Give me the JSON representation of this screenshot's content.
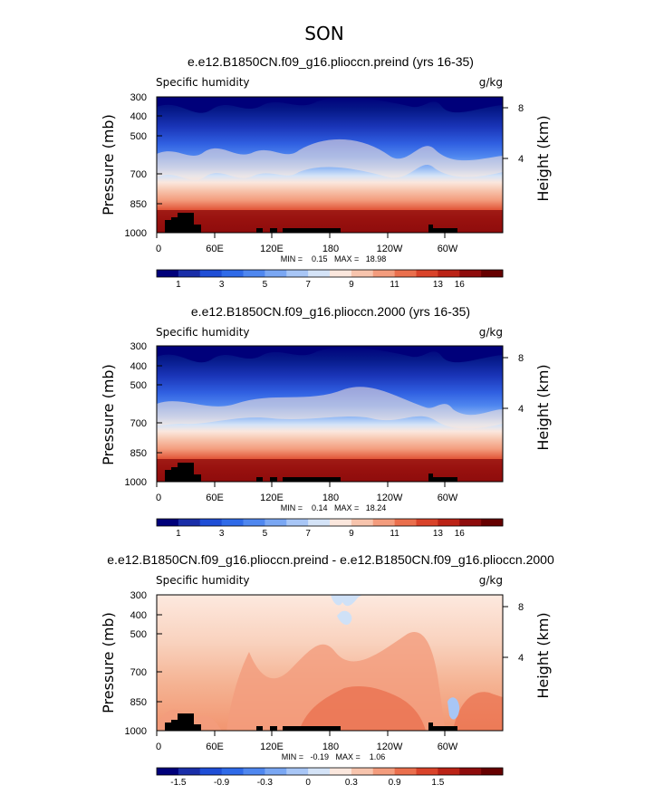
{
  "page_title": "SON",
  "chart_data": [
    {
      "type": "contour",
      "title": "e.e12.B1850CN.f09_g16.plioccn.preind (yrs 16-35)",
      "left_label": "Specific humidity",
      "units": "g/kg",
      "ylabel": "Pressure (mb)",
      "ylabel_right": "Height (km)",
      "yticks": [
        "300",
        "400",
        "500",
        "700",
        "850",
        "1000"
      ],
      "yticks_right": [
        "8",
        "4"
      ],
      "xticks": [
        "0",
        "60E",
        "120E",
        "180",
        "120W",
        "60W"
      ],
      "stats": "MIN =    0.15   MAX =   18.98",
      "colorbar_labels": [
        "1",
        "3",
        "5",
        "7",
        "9",
        "11",
        "13",
        "16"
      ],
      "colorbar_colors": [
        "#00007a",
        "#1a2ea8",
        "#1f4ed6",
        "#2f6ae8",
        "#4f87ef",
        "#7aa7f3",
        "#a8c6f6",
        "#d4e3f7",
        "#fbe7dd",
        "#f7c4ad",
        "#f39c7d",
        "#ea6f4d",
        "#d9432a",
        "#bb2316",
        "#8e0c0c",
        "#660000"
      ],
      "value_range": [
        0.15,
        18.98
      ]
    },
    {
      "type": "contour",
      "title": "e.e12.B1850CN.f09_g16.plioccn.2000 (yrs 16-35)",
      "left_label": "Specific humidity",
      "units": "g/kg",
      "ylabel": "Pressure (mb)",
      "ylabel_right": "Height (km)",
      "yticks": [
        "300",
        "400",
        "500",
        "700",
        "850",
        "1000"
      ],
      "yticks_right": [
        "8",
        "4"
      ],
      "xticks": [
        "0",
        "60E",
        "120E",
        "180",
        "120W",
        "60W"
      ],
      "stats": "MIN =    0.14   MAX =   18.24",
      "colorbar_labels": [
        "1",
        "3",
        "5",
        "7",
        "9",
        "11",
        "13",
        "16"
      ],
      "colorbar_colors": [
        "#00007a",
        "#1a2ea8",
        "#1f4ed6",
        "#2f6ae8",
        "#4f87ef",
        "#7aa7f3",
        "#a8c6f6",
        "#d4e3f7",
        "#fbe7dd",
        "#f7c4ad",
        "#f39c7d",
        "#ea6f4d",
        "#d9432a",
        "#bb2316",
        "#8e0c0c",
        "#660000"
      ],
      "value_range": [
        0.14,
        18.24
      ]
    },
    {
      "type": "contour",
      "title": "e.e12.B1850CN.f09_g16.plioccn.preind - e.e12.B1850CN.f09_g16.plioccn.2000",
      "left_label": "Specific humidity",
      "units": "g/kg",
      "ylabel": "Pressure (mb)",
      "ylabel_right": "Height (km)",
      "yticks": [
        "300",
        "400",
        "500",
        "700",
        "850",
        "1000"
      ],
      "yticks_right": [
        "8",
        "4"
      ],
      "xticks": [
        "0",
        "60E",
        "120E",
        "180",
        "120W",
        "60W"
      ],
      "stats": "MIN =   -0.19   MAX =    1.06",
      "colorbar_labels": [
        "-1.5",
        "-0.9",
        "-0.3",
        "0",
        "0.3",
        "0.9",
        "1.5"
      ],
      "colorbar_colors": [
        "#00007a",
        "#1a2ea8",
        "#1f4ed6",
        "#2f6ae8",
        "#4f87ef",
        "#7aa7f3",
        "#a8c6f6",
        "#d4e3f7",
        "#fbe7dd",
        "#f7c4ad",
        "#f39c7d",
        "#ea6f4d",
        "#d9432a",
        "#bb2316",
        "#8e0c0c",
        "#660000"
      ],
      "value_range": [
        -0.19,
        1.06
      ]
    }
  ]
}
